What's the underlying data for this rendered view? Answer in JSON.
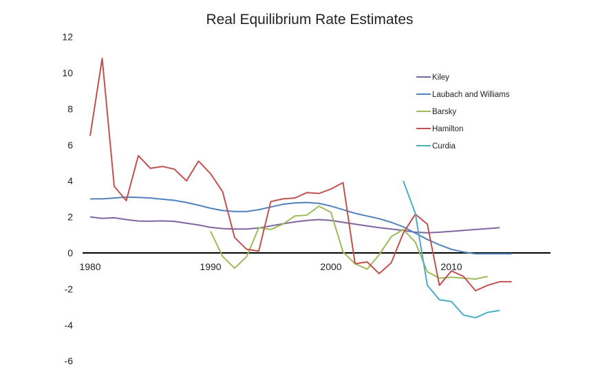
{
  "chart_data": {
    "type": "line",
    "title": "Real Equilibrium Rate Estimates",
    "xlabel": "",
    "ylabel": "",
    "ylim": [
      -6,
      12
    ],
    "yticks": [
      -6,
      -4,
      -2,
      0,
      2,
      4,
      6,
      8,
      10,
      12
    ],
    "xticks": [
      1980,
      1990,
      2000,
      2010
    ],
    "grid": false,
    "legend_position": "top-right",
    "series": [
      {
        "name": "Kiley",
        "color": "#8064a2",
        "x": [
          1980,
          1981,
          1982,
          1983,
          1984,
          1985,
          1986,
          1987,
          1988,
          1989,
          1990,
          1991,
          1992,
          1993,
          1994,
          1995,
          1996,
          1997,
          1998,
          1999,
          2000,
          2001,
          2002,
          2003,
          2004,
          2005,
          2006,
          2007,
          2008,
          2009,
          2010,
          2011,
          2012,
          2013,
          2014
        ],
        "y": [
          2.0,
          1.92,
          1.95,
          1.85,
          1.77,
          1.76,
          1.78,
          1.75,
          1.65,
          1.55,
          1.42,
          1.35,
          1.33,
          1.33,
          1.38,
          1.5,
          1.62,
          1.72,
          1.8,
          1.85,
          1.8,
          1.7,
          1.6,
          1.5,
          1.4,
          1.33,
          1.25,
          1.15,
          1.12,
          1.15,
          1.2,
          1.25,
          1.3,
          1.35,
          1.4
        ]
      },
      {
        "name": "Laubach and Williams",
        "color": "#4f81bd",
        "x": [
          1980,
          1981,
          1982,
          1983,
          1984,
          1985,
          1986,
          1987,
          1988,
          1989,
          1990,
          1991,
          1992,
          1993,
          1994,
          1995,
          1996,
          1997,
          1998,
          1999,
          2000,
          2001,
          2002,
          2003,
          2004,
          2005,
          2006,
          2007,
          2008,
          2009,
          2010,
          2011,
          2012,
          2013,
          2014,
          2015
        ],
        "y": [
          3.0,
          3.0,
          3.05,
          3.1,
          3.08,
          3.05,
          2.98,
          2.92,
          2.8,
          2.65,
          2.48,
          2.35,
          2.3,
          2.3,
          2.4,
          2.55,
          2.7,
          2.78,
          2.8,
          2.75,
          2.6,
          2.4,
          2.2,
          2.05,
          1.9,
          1.7,
          1.45,
          1.1,
          0.75,
          0.45,
          0.2,
          0.05,
          -0.05,
          -0.05,
          -0.05,
          -0.05
        ]
      },
      {
        "name": "Barsky",
        "color": "#9bbb59",
        "x": [
          1990,
          1991,
          1992,
          1993,
          1994,
          1995,
          1996,
          1997,
          1998,
          1999,
          2000,
          2001,
          2002,
          2003,
          2004,
          2005,
          2006,
          2007,
          2008,
          2009,
          2010,
          2011,
          2012,
          2013
        ],
        "y": [
          1.2,
          -0.2,
          -0.85,
          -0.2,
          1.4,
          1.3,
          1.6,
          2.05,
          2.1,
          2.6,
          2.25,
          0.05,
          -0.6,
          -0.9,
          -0.1,
          0.9,
          1.3,
          0.6,
          -1.05,
          -1.4,
          -1.35,
          -1.4,
          -1.45,
          -1.3
        ]
      },
      {
        "name": "Hamilton",
        "color": "#c0504d",
        "x": [
          1980,
          1981,
          1982,
          1983,
          1984,
          1985,
          1986,
          1987,
          1988,
          1989,
          1990,
          1991,
          1992,
          1993,
          1994,
          1995,
          1996,
          1997,
          1998,
          1999,
          2000,
          2001,
          2002,
          2003,
          2004,
          2005,
          2006,
          2007,
          2008,
          2009,
          2010,
          2011,
          2012,
          2013,
          2014,
          2015
        ],
        "y": [
          6.5,
          10.8,
          3.7,
          2.9,
          5.4,
          4.7,
          4.8,
          4.65,
          4.0,
          5.1,
          4.4,
          3.4,
          0.85,
          0.2,
          0.1,
          2.85,
          3.0,
          3.05,
          3.35,
          3.3,
          3.55,
          3.9,
          -0.6,
          -0.5,
          -1.15,
          -0.55,
          1.1,
          2.15,
          1.6,
          -1.8,
          -1.0,
          -1.3,
          -2.1,
          -1.8,
          -1.6,
          -1.6
        ]
      },
      {
        "name": "Curdia",
        "color": "#4bacc6",
        "x": [
          2006,
          2007,
          2008,
          2009,
          2010,
          2011,
          2012,
          2013,
          2014
        ],
        "y": [
          4.0,
          2.2,
          -1.8,
          -2.6,
          -2.7,
          -3.45,
          -3.6,
          -3.3,
          -3.2
        ]
      }
    ]
  }
}
